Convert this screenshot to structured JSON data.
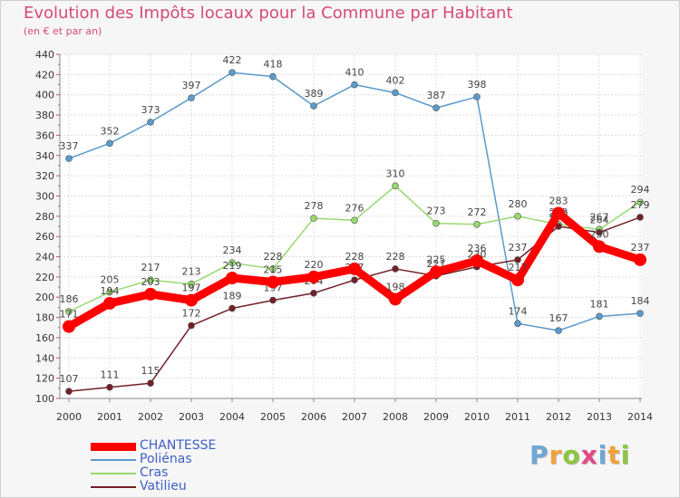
{
  "title": "Evolution des Impôts locaux pour la Commune par Habitant",
  "subtitle": "(en € et par an)",
  "brand": {
    "letters": [
      {
        "char": "P",
        "color": "#6fa7d6"
      },
      {
        "char": "r",
        "color": "#f2a23a"
      },
      {
        "char": "o",
        "color": "#8dc63f"
      },
      {
        "char": "x",
        "color": "#e24a85"
      },
      {
        "char": "i",
        "color": "#6fa7d6"
      },
      {
        "char": "t",
        "color": "#f2a23a"
      },
      {
        "char": "i",
        "color": "#8dc63f"
      }
    ]
  },
  "chart_data": {
    "type": "line",
    "title": "Evolution des Impôts locaux pour la Commune par Habitant",
    "ylabel": "(en € et par an)",
    "xlabel": "",
    "ylim": [
      100,
      440
    ],
    "ytick_step": 20,
    "grid": true,
    "legend_position": "bottom-left",
    "categories": [
      "2000",
      "2001",
      "2002",
      "2003",
      "2004",
      "2005",
      "2006",
      "2007",
      "2008",
      "2009",
      "2010",
      "2011",
      "2012",
      "2013",
      "2014"
    ],
    "series": [
      {
        "name": "Poliénas",
        "color": "#5a9acc",
        "bold": false,
        "values": [
          337,
          352,
          373,
          397,
          422,
          418,
          389,
          410,
          402,
          387,
          398,
          174,
          167,
          181,
          184
        ]
      },
      {
        "name": "Cras",
        "color": "#98d870",
        "bold": false,
        "values": [
          186,
          205,
          217,
          213,
          234,
          228,
          278,
          276,
          310,
          273,
          272,
          280,
          272,
          267,
          294
        ]
      },
      {
        "name": "Vatilieu",
        "color": "#722028",
        "bold": false,
        "values": [
          107,
          111,
          115,
          172,
          189,
          197,
          204,
          217,
          228,
          221,
          230,
          237,
          270,
          264,
          279
        ]
      },
      {
        "name": "CHANTESSE",
        "color": "#ff0000",
        "bold": true,
        "values": [
          171,
          194,
          203,
          197,
          219,
          215,
          220,
          228,
          198,
          225,
          236,
          217,
          283,
          250,
          237
        ]
      }
    ]
  }
}
